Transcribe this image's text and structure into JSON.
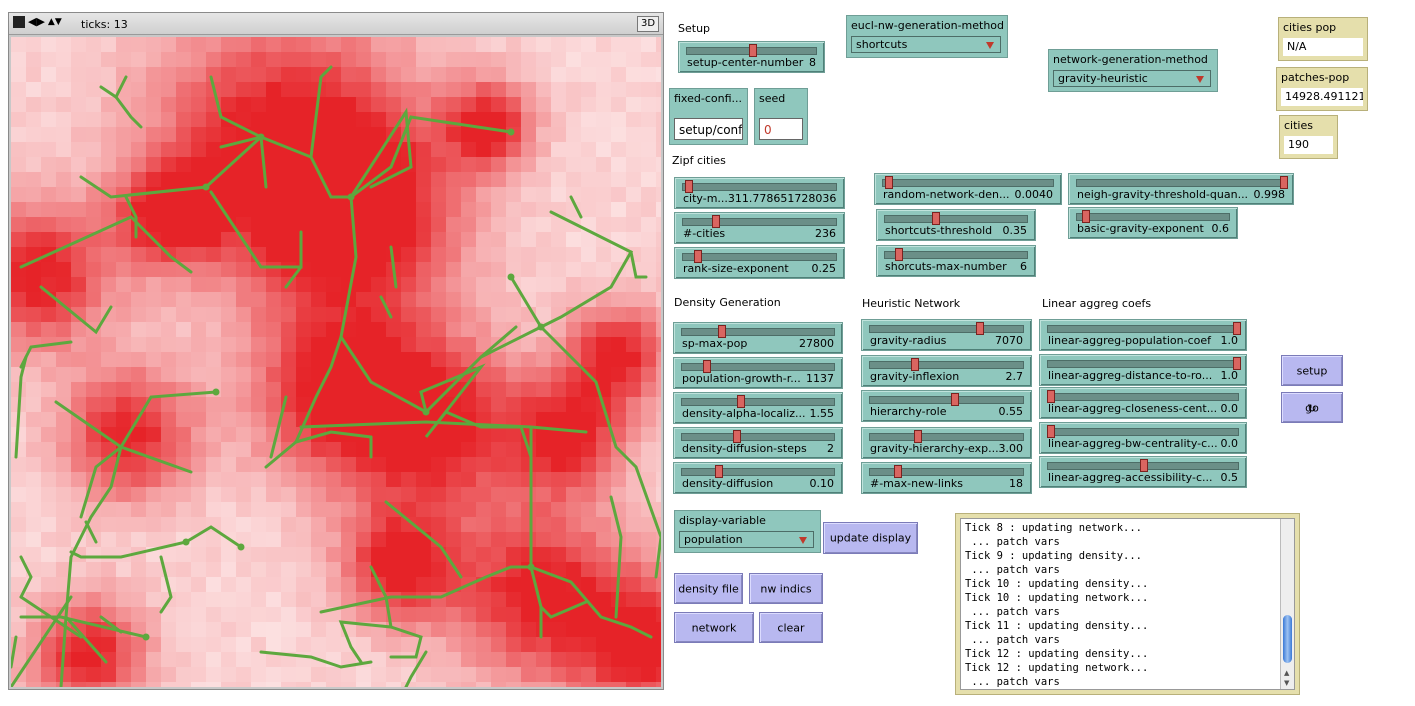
{
  "view": {
    "ticks_label": "ticks: 13",
    "btn_3d": "3D"
  },
  "section_labels": {
    "setup": "Setup",
    "zipf": "Zipf cities",
    "density": "Density Generation",
    "heuristic": "Heuristic Network",
    "linear": "Linear aggreg coefs"
  },
  "sliders": [
    {
      "name": "setup-center-number",
      "value": "8",
      "pos": 0.5
    },
    {
      "name": "city-m...311.778651728036",
      "value": "",
      "pos": 0.02
    },
    {
      "name": "#-cities",
      "value": "236",
      "pos": 0.2
    },
    {
      "name": "rank-size-exponent",
      "value": "0.25",
      "pos": 0.08
    },
    {
      "name": "random-network-den...",
      "value": "0.0040",
      "pos": 0.02
    },
    {
      "name": "shortcuts-threshold",
      "value": "0.35",
      "pos": 0.35
    },
    {
      "name": "shorcuts-max-number",
      "value": "6",
      "pos": 0.08
    },
    {
      "name": "neigh-gravity-threshold-quan...",
      "value": "0.998",
      "pos": 0.998
    },
    {
      "name": "basic-gravity-exponent",
      "value": "0.6",
      "pos": 0.04
    },
    {
      "name": "sp-max-pop",
      "value": "27800",
      "pos": 0.25
    },
    {
      "name": "population-growth-r...",
      "value": "1137",
      "pos": 0.15
    },
    {
      "name": "density-alpha-localiz...",
      "value": "1.55",
      "pos": 0.38
    },
    {
      "name": "density-diffusion-steps",
      "value": "2",
      "pos": 0.35
    },
    {
      "name": "density-diffusion",
      "value": "0.10",
      "pos": 0.23
    },
    {
      "name": "gravity-radius",
      "value": "7070",
      "pos": 0.72
    },
    {
      "name": "gravity-inflexion",
      "value": "2.7",
      "pos": 0.28
    },
    {
      "name": "hierarchy-role",
      "value": "0.55",
      "pos": 0.55
    },
    {
      "name": "gravity-hierarchy-exp...",
      "value": "3.00",
      "pos": 0.3
    },
    {
      "name": "#-max-new-links",
      "value": "18",
      "pos": 0.17
    },
    {
      "name": "linear-aggreg-population-coef",
      "value": "1.0",
      "pos": 1.0
    },
    {
      "name": "linear-aggreg-distance-to-ro...",
      "value": "1.0",
      "pos": 1.0
    },
    {
      "name": "linear-aggreg-closeness-cent...",
      "value": "0.0",
      "pos": 0.0
    },
    {
      "name": "linear-aggreg-bw-centrality-c...",
      "value": "0.0",
      "pos": 0.0
    },
    {
      "name": "linear-aggreg-accessibility-c...",
      "value": "0.5",
      "pos": 0.5
    }
  ],
  "choosers": {
    "eucl": {
      "name": "eucl-nw-generation-method",
      "value": "shortcuts"
    },
    "network": {
      "name": "network-generation-method",
      "value": "gravity-heuristic"
    },
    "display": {
      "name": "display-variable",
      "value": "population"
    }
  },
  "inputs": {
    "fixed": {
      "name": "fixed-confi...",
      "value": "setup/conf"
    },
    "seed": {
      "name": "seed",
      "value": "0"
    }
  },
  "monitors": {
    "cities_pop": {
      "name": "cities pop",
      "value": "N/A"
    },
    "patches_pop": {
      "name": "patches-pop",
      "value": "14928.491121"
    },
    "cities": {
      "name": "cities",
      "value": "190"
    }
  },
  "buttons": {
    "setup": "setup",
    "go": "go",
    "update_display": "update display",
    "density_file": "density file",
    "nw_indics": "nw indics",
    "network": "network",
    "clear": "clear"
  },
  "output_lines": [
    "Tick 8 : updating network...",
    " ... patch vars",
    "Tick 9 : updating density...",
    " ... patch vars",
    "Tick 10 : updating density...",
    "Tick 10 : updating network...",
    " ... patch vars",
    "Tick 11 : updating density...",
    " ... patch vars",
    "Tick 12 : updating density...",
    "Tick 12 : updating network...",
    " ... patch vars"
  ],
  "colors": {
    "road": "#5da83e",
    "hotspot": "#e8262c",
    "slider": "#8fc7bd",
    "button": "#b8b8f0",
    "monitor": "#e5dfac"
  }
}
